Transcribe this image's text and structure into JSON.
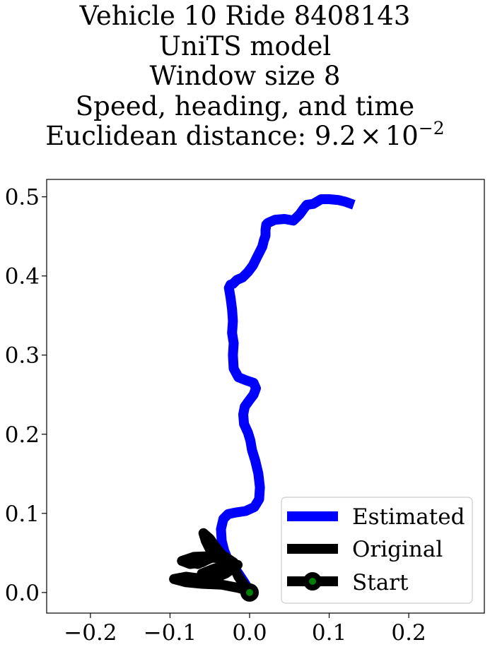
{
  "chart_data": {
    "type": "line",
    "title_lines": [
      "Vehicle 10 Ride 8408143",
      "UniTS model",
      "Window size 8",
      "Speed, heading, and time"
    ],
    "title_distance_prefix": "Euclidean distance: ",
    "title_distance_mantissa": "9.2",
    "title_distance_times": "×",
    "title_distance_base": "10",
    "title_distance_exponent": "−2",
    "xlim": [
      -0.255,
      0.295
    ],
    "ylim": [
      -0.026,
      0.522
    ],
    "xticks": [
      -0.2,
      -0.1,
      0.0,
      0.1,
      0.2
    ],
    "xtick_labels": [
      "−0.2",
      "−0.1",
      "0.0",
      "0.1",
      "0.2"
    ],
    "yticks": [
      0.0,
      0.1,
      0.2,
      0.3,
      0.4,
      0.5
    ],
    "ytick_labels": [
      "0.0",
      "0.1",
      "0.2",
      "0.3",
      "0.4",
      "0.5"
    ],
    "legend": {
      "position": "lower right",
      "entries": [
        "Estimated",
        "Original",
        "Start"
      ]
    },
    "colors": {
      "estimated": "#0000ff",
      "original": "#000000",
      "start_fill": "#008000",
      "start_edge": "#000000"
    },
    "series": [
      {
        "name": "Estimated",
        "x": [
          0.0,
          -0.008,
          -0.016,
          -0.022,
          -0.028,
          -0.032,
          -0.035,
          -0.036,
          -0.033,
          -0.027,
          -0.018,
          -0.005,
          0.006,
          0.012,
          0.013,
          0.011,
          0.007,
          0.003,
          0.001,
          -0.002,
          -0.007,
          -0.008,
          -0.006,
          -0.001,
          0.005,
          0.008,
          0.005,
          -0.004,
          -0.014,
          -0.02,
          -0.021,
          -0.02,
          -0.022,
          -0.021,
          -0.022,
          -0.024,
          -0.026,
          -0.024,
          -0.021,
          -0.019,
          -0.016,
          -0.009,
          -0.002,
          0.004,
          0.009,
          0.016,
          0.018,
          0.02,
          0.02,
          0.021,
          0.023,
          0.032,
          0.044,
          0.055,
          0.063,
          0.068,
          0.072,
          0.08,
          0.09,
          0.1,
          0.111,
          0.12,
          0.128,
          0.131
        ],
        "y": [
          0.002,
          0.015,
          0.027,
          0.035,
          0.043,
          0.053,
          0.065,
          0.08,
          0.093,
          0.099,
          0.101,
          0.103,
          0.108,
          0.118,
          0.133,
          0.15,
          0.167,
          0.18,
          0.192,
          0.202,
          0.213,
          0.225,
          0.235,
          0.242,
          0.25,
          0.258,
          0.265,
          0.268,
          0.272,
          0.283,
          0.3,
          0.315,
          0.328,
          0.343,
          0.358,
          0.373,
          0.385,
          0.389,
          0.39,
          0.392,
          0.395,
          0.398,
          0.405,
          0.413,
          0.423,
          0.437,
          0.445,
          0.451,
          0.458,
          0.465,
          0.467,
          0.471,
          0.472,
          0.47,
          0.478,
          0.485,
          0.49,
          0.491,
          0.497,
          0.497,
          0.496,
          0.494,
          0.491,
          0.49
        ]
      },
      {
        "name": "Original",
        "x": [
          0.0,
          -0.007,
          -0.014,
          -0.02,
          -0.03,
          -0.045,
          -0.065,
          -0.085,
          -0.075,
          -0.06,
          -0.045,
          -0.07,
          -0.085,
          -0.065,
          -0.045,
          -0.05,
          -0.055,
          -0.058,
          -0.05,
          -0.043,
          -0.035,
          -0.02,
          -0.045,
          -0.06,
          -0.045,
          -0.03,
          -0.015,
          -0.028,
          -0.042,
          -0.055,
          -0.065,
          -0.08,
          -0.095,
          -0.08,
          -0.06,
          -0.035,
          -0.015,
          0.0
        ],
        "y": [
          0.0,
          0.01,
          0.02,
          0.033,
          0.042,
          0.044,
          0.042,
          0.04,
          0.036,
          0.038,
          0.046,
          0.045,
          0.04,
          0.036,
          0.045,
          0.055,
          0.065,
          0.075,
          0.068,
          0.058,
          0.048,
          0.038,
          0.03,
          0.024,
          0.018,
          0.024,
          0.035,
          0.03,
          0.024,
          0.018,
          0.018,
          0.02,
          0.017,
          0.013,
          0.011,
          0.01,
          0.006,
          0.002
        ]
      },
      {
        "name": "Start",
        "x": [
          0.0
        ],
        "y": [
          0.0
        ]
      }
    ]
  }
}
